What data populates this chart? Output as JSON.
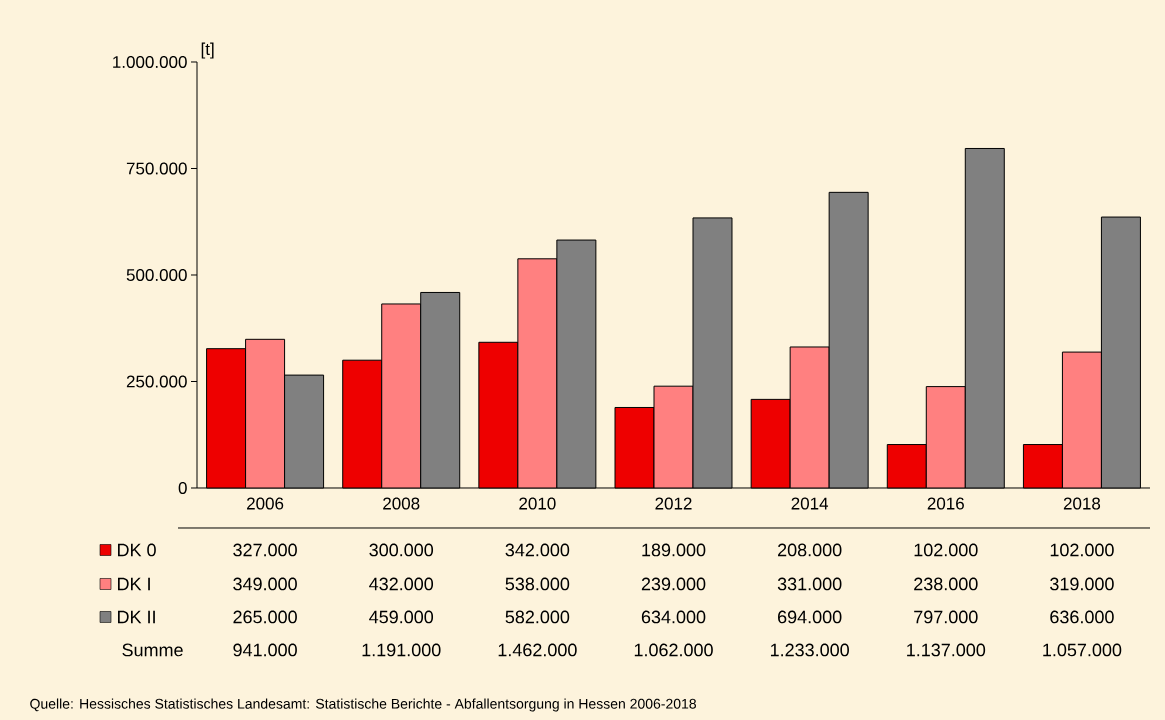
{
  "chart_data": {
    "type": "bar",
    "ylabel": "[t]",
    "categories": [
      "2006",
      "2008",
      "2010",
      "2012",
      "2014",
      "2016",
      "2018"
    ],
    "series": [
      {
        "name": "DK 0",
        "color": "#ee0000",
        "values": [
          327000,
          300000,
          342000,
          189000,
          208000,
          102000,
          102000
        ],
        "value_labels": [
          "327.000",
          "300.000",
          "342.000",
          "189.000",
          "208.000",
          "102.000",
          "102.000"
        ]
      },
      {
        "name": "DK I",
        "color": "#ff8080",
        "values": [
          349000,
          432000,
          538000,
          239000,
          331000,
          238000,
          319000
        ],
        "value_labels": [
          "349.000",
          "432.000",
          "538.000",
          "239.000",
          "331.000",
          "238.000",
          "319.000"
        ]
      },
      {
        "name": "DK II",
        "color": "#808080",
        "values": [
          265000,
          459000,
          582000,
          634000,
          694000,
          797000,
          636000
        ],
        "value_labels": [
          "265.000",
          "459.000",
          "582.000",
          "634.000",
          "694.000",
          "797.000",
          "636.000"
        ]
      }
    ],
    "ylim": [
      0,
      1000000
    ],
    "yticks": [
      0,
      {
        "value": 250000,
        "label": "250.000"
      },
      {
        "value": 500000,
        "label": "500.000"
      },
      {
        "value": 750000,
        "label": "750.000"
      },
      {
        "value": 1000000,
        "label": "1.000.000"
      }
    ],
    "grid": false,
    "legend": "bottom",
    "annotations": [
      "Summe",
      "941.000",
      "1.191.000",
      "1.462.000",
      "1.062.000",
      "1.233.000",
      "1.137.000",
      "1.057.000",
      "Quelle: Hessisches Statistisches Landesamt: Statistische Berichte - Abfallentsorgung in Hessen 2006-2018"
    ]
  }
}
